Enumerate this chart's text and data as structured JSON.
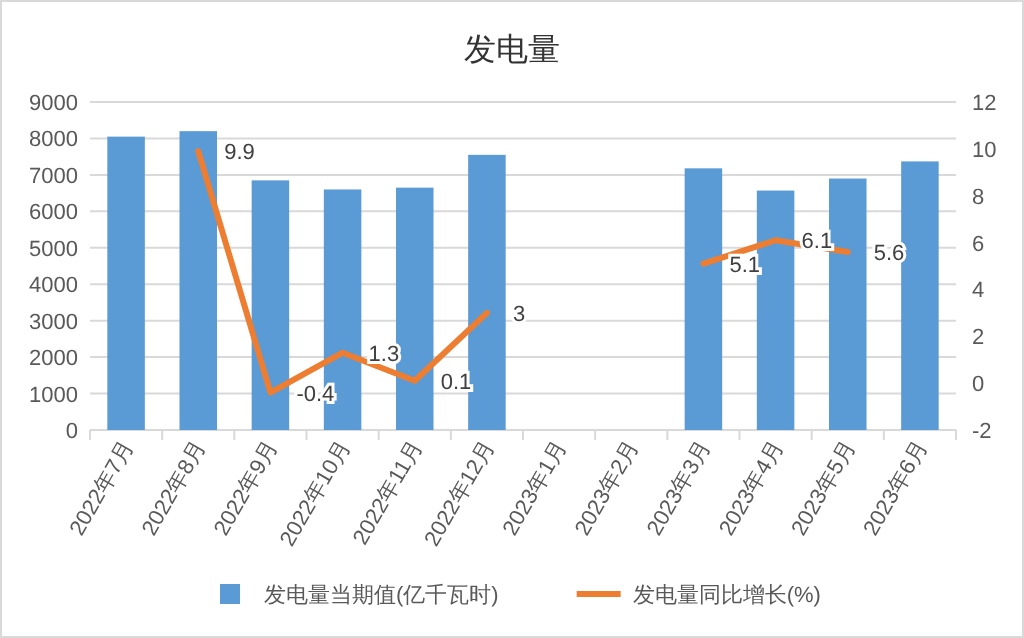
{
  "chart_data": {
    "type": "bar",
    "title": "发电量",
    "categories": [
      "2022年7月",
      "2022年8月",
      "2022年9月",
      "2022年10月",
      "2022年11月",
      "2022年12月",
      "2023年1月",
      "2023年2月",
      "2023年3月",
      "2023年4月",
      "2023年5月",
      "2023年6月"
    ],
    "series": [
      {
        "name": "发电量当期值(亿千瓦时)",
        "color": "#5b9bd5",
        "values": [
          8050,
          8200,
          6850,
          6600,
          6650,
          7550,
          null,
          null,
          7180,
          6570,
          6900,
          7370
        ]
      },
      {
        "name": "发电量同比增长(%)",
        "type": "line",
        "axis": "y2",
        "color": "#ed7d31",
        "values": [
          null,
          9.9,
          -0.4,
          1.3,
          0.1,
          3,
          null,
          null,
          5.1,
          6.1,
          5.6,
          null
        ],
        "data_labels": true
      }
    ],
    "ylim": [
      0,
      9000
    ],
    "yticks": [
      0,
      1000,
      2000,
      3000,
      4000,
      5000,
      6000,
      7000,
      8000,
      9000
    ],
    "y2lim": [
      -2,
      12
    ],
    "y2ticks": [
      -2,
      0,
      2,
      4,
      6,
      8,
      10,
      12
    ],
    "grid": "y",
    "legend": "bottom"
  }
}
